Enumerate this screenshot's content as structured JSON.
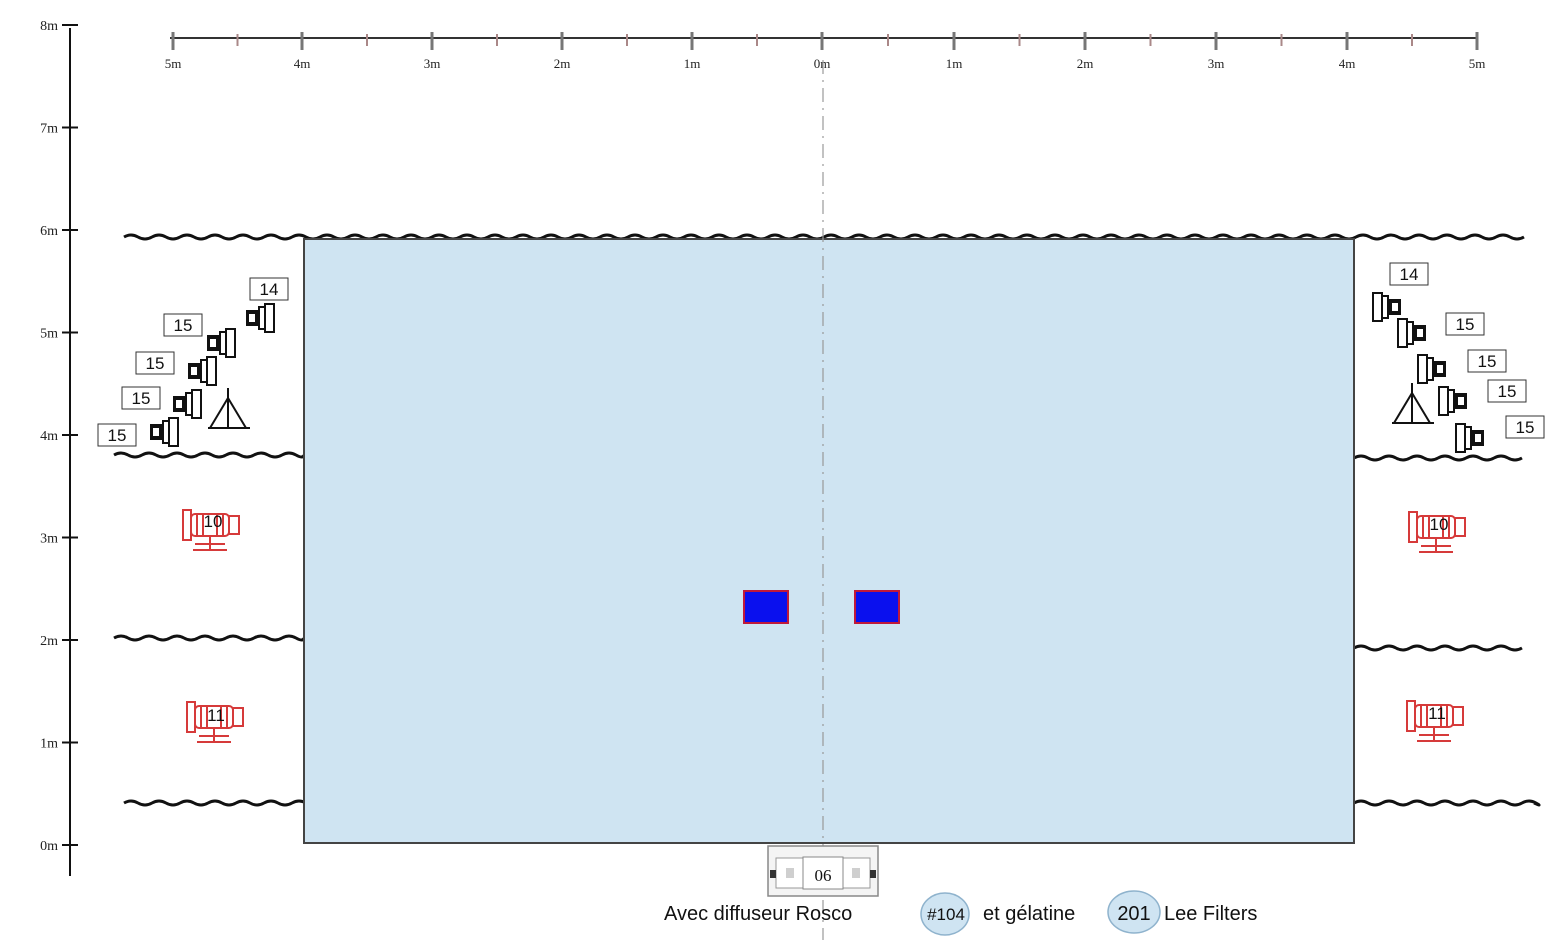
{
  "vertical_axis": {
    "labels": [
      "0m",
      "1m",
      "2m",
      "3m",
      "4m",
      "5m",
      "6m",
      "7m",
      "8m"
    ]
  },
  "horizontal_ruler": {
    "labels": [
      "5m",
      "4m",
      "3m",
      "2m",
      "1m",
      "0m",
      "1m",
      "2m",
      "3m",
      "4m",
      "5m"
    ]
  },
  "fixtures": {
    "left_group_1": [
      "14",
      "15",
      "15",
      "15",
      "15"
    ],
    "right_group_1": [
      "14",
      "15",
      "15",
      "15",
      "15"
    ],
    "left_red_upper": "10",
    "right_red_upper": "10",
    "left_red_lower": "11",
    "right_red_lower": "11",
    "bottom_unit": "06"
  },
  "caption": {
    "prefix": "Avec diffuseur Rosco",
    "rosco_code": "#104",
    "middle": "et gélatine",
    "lee_code": "201",
    "suffix": "Lee Filters"
  },
  "colors": {
    "stage_fill": "#cfe4f2",
    "marker_fill": "#0a10ee",
    "marker_border": "#c0193a",
    "red_fixture": "#d63a3a",
    "code_bubble": "#cfe4f2"
  }
}
